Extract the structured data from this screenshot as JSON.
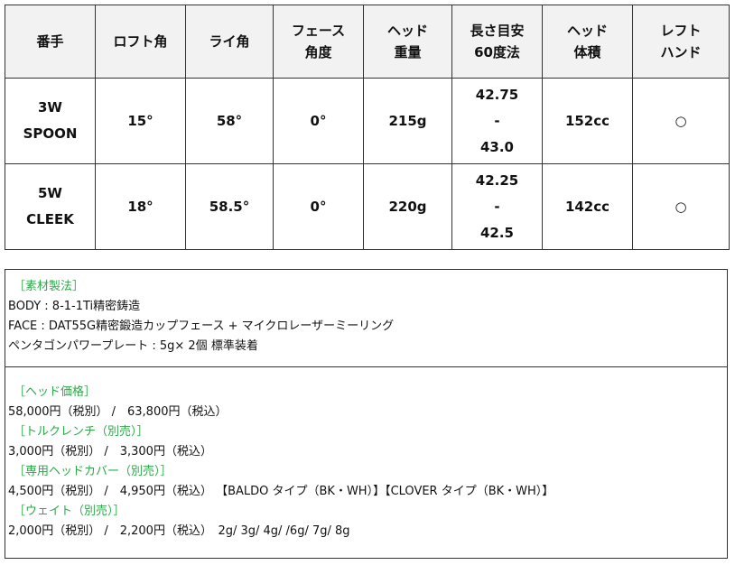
{
  "table": {
    "headers": [
      "番手",
      "ロフト角",
      "ライ角",
      "フェース\n角度",
      "ヘッド\n重量",
      "長さ目安\n60度法",
      "ヘッド\n体積",
      "レフト\nハンド"
    ],
    "rows": [
      [
        "3W\nSPOON",
        "15°",
        "58°",
        "0°",
        "215g",
        "42.75\n-\n43.0",
        "152cc",
        "○"
      ],
      [
        "5W\nCLEEK",
        "18°",
        "58.5°",
        "0°",
        "220g",
        "42.25\n-\n42.5",
        "142cc",
        "○"
      ]
    ]
  },
  "materials": {
    "heading": "［素材製法］",
    "lines": [
      "BODY : 8-1-1Ti精密鋳造",
      "FACE : DAT55G精密鍛造カップフェース + マイクロレーザーミーリング",
      "ペンタゴンパワープレート : 5g× 2個 標準装着"
    ]
  },
  "prices": [
    {
      "heading": "［ヘッド価格］",
      "line": "58,000円（税別） /　63,800円（税込）"
    },
    {
      "heading": "［トルクレンチ（別売）］",
      "line": "3,000円（税別） /　3,300円（税込）"
    },
    {
      "heading": "［専用ヘッドカバー（別売）］",
      "line": "4,500円（税別） /　4,950円（税込） 【BALDO タイプ（BK・WH）】【CLOVER タイプ（BK・WH）】"
    },
    {
      "heading": "［ウェイト（別売）］",
      "line": "2,000円（税別） /　2,200円（税込）　2g/ 3g/ 4g/ /6g/ 7g/ 8g"
    }
  ],
  "colors": {
    "heading_green": "#2ea84a",
    "header_bg": "#f2f2f2"
  }
}
